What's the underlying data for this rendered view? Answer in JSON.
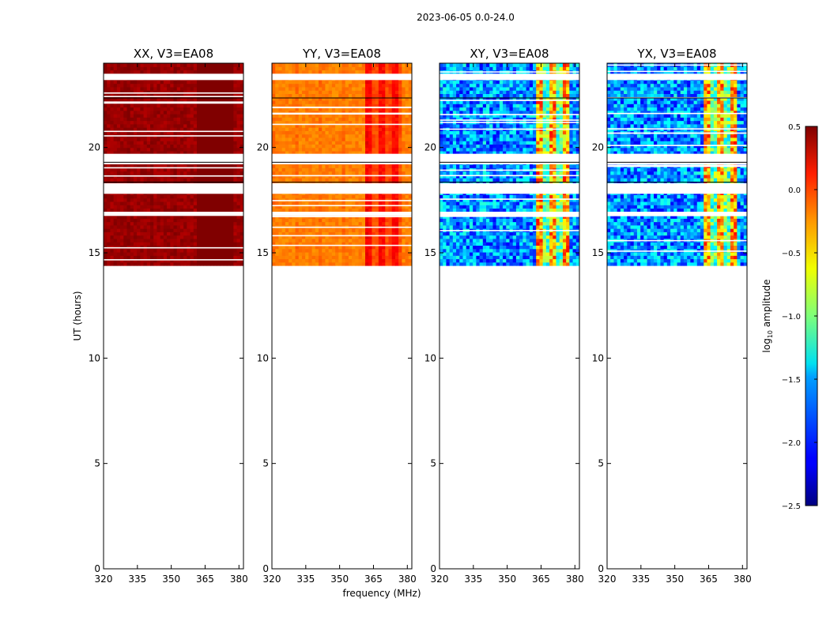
{
  "figure": {
    "suptitle": "2023-06-05 0.0-24.0"
  },
  "chart_data": {
    "type": "heatmap",
    "xlabel": "frequency (MHz)",
    "ylabel": "UT (hours)",
    "xlim": [
      320,
      382
    ],
    "ylim": [
      0,
      24
    ],
    "x_ticks": [
      320,
      335,
      350,
      365,
      380
    ],
    "x_tick_labels": [
      "320",
      "335",
      "350",
      "365",
      "380"
    ],
    "y_ticks": [
      0,
      5,
      10,
      15,
      20
    ],
    "y_tick_labels": [
      "0",
      "5",
      "10",
      "15",
      "20"
    ],
    "data_coverage_hours": [
      14.4,
      24.0
    ],
    "flagged_gaps_hours": [
      [
        19.2,
        19.7
      ],
      [
        17.8,
        18.3
      ],
      [
        23.2,
        23.5
      ],
      [
        16.75,
        16.95
      ]
    ],
    "panels": [
      {
        "title": "XX, V3=EA08",
        "base_level": 0.42,
        "rfi_band_mhz": [
          362,
          378
        ]
      },
      {
        "title": "YY, V3=EA08",
        "base_level": -0.25,
        "rfi_band_mhz": [
          362,
          378
        ]
      },
      {
        "title": "XY, V3=EA08",
        "base_level": -1.7,
        "rfi_band_mhz": [
          363,
          377
        ]
      },
      {
        "title": "YX, V3=EA08",
        "base_level": -1.7,
        "rfi_band_mhz": [
          363,
          377
        ]
      }
    ],
    "colorbar": {
      "label": "log",
      "label_sub": "10",
      "label_suffix": " amplitude",
      "range": [
        -2.5,
        0.5
      ],
      "ticks": [
        -2.5,
        -2.0,
        -1.5,
        -1.0,
        -0.5,
        0.0,
        0.5
      ],
      "tick_labels": [
        "−2.5",
        "−2.0",
        "−1.5",
        "−1.0",
        "−0.5",
        "0.0",
        "0.5"
      ],
      "colormap": "jet"
    }
  }
}
